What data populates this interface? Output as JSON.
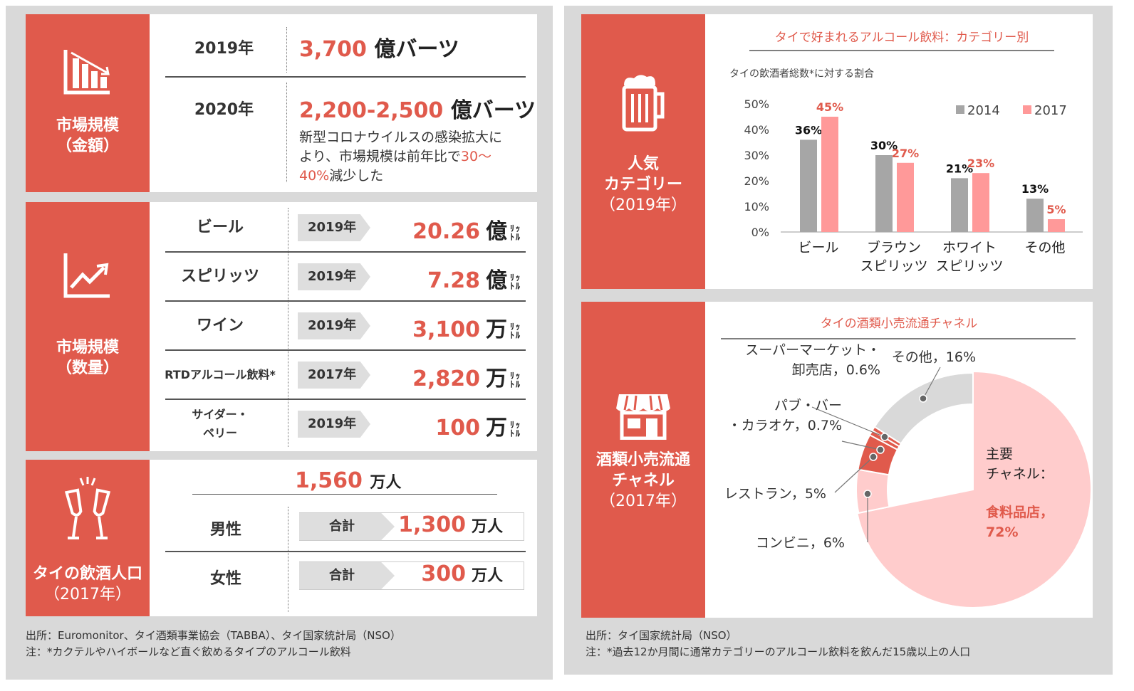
{
  "market_value": {
    "label": "市場規模",
    "sub": "（金額）",
    "rows": [
      {
        "year": "2019年",
        "num": "3,700",
        "unit": "億バーツ"
      },
      {
        "year": "2020年",
        "num": "2,200-2,500",
        "unit": "億バーツ"
      }
    ],
    "note_a": "新型コロナウイルスの感染拡大に",
    "note_b": "より、市場規模は前年比で",
    "note_c": "30～",
    "note_d": "40%",
    "note_e": "減少した"
  },
  "market_volume": {
    "label": "市場規模",
    "sub": "（数量）",
    "rows": [
      {
        "name": "ビール",
        "year": "2019年",
        "num": "20.26",
        "unit": "億"
      },
      {
        "name": "スピリッツ",
        "year": "2019年",
        "num": "7.28",
        "unit": "億"
      },
      {
        "name": "ワイン",
        "year": "2019年",
        "num": "3,100",
        "unit": "万"
      },
      {
        "name": "RTDアルコール飲料*",
        "year": "2017年",
        "num": "2,820",
        "unit": "万"
      },
      {
        "name": "サイダー・\nペリー",
        "year": "2019年",
        "num": "100",
        "unit": "万"
      }
    ],
    "liter_top": "ﾘｯ",
    "liter_bottom": "ﾄﾙ"
  },
  "drinking_pop": {
    "label": "タイの飲酒人口",
    "sub": "（2017年）",
    "total_num": "1,560",
    "total_unit": "万人",
    "rows": [
      {
        "name": "男性",
        "tag": "合計",
        "num": "1,300",
        "unit": "万人"
      },
      {
        "name": "女性",
        "tag": "合計",
        "num": "300",
        "unit": "万人"
      }
    ]
  },
  "footer_left": {
    "line1": "出所：Euromonitor、タイ酒類事業協会（TABBA）、タイ国家統計局（NSO）",
    "line2": "注：*カクテルやハイボールなど直ぐ飲めるタイプのアルコール飲料"
  },
  "popular": {
    "label_a": "人気",
    "label_b": "カテゴリー",
    "sub": "（2019年）"
  },
  "retail": {
    "label_a": "酒類小売流通",
    "label_b": "チャネル",
    "sub": "（2017年）"
  },
  "footer_right": {
    "line1": "出所：タイ国家統計局（NSO）",
    "line2": "注：*過去12か月間に通常カテゴリーのアルコール飲料を飲んだ15歳以上の人口"
  },
  "colors": {
    "accent": "#e05a4c",
    "gray_bar": "#a6a6a6",
    "pink_bar": "#ff9999",
    "pie_main": "#ffcccc",
    "pie_gray": "#d9d9d9"
  },
  "chart_data": [
    {
      "type": "bar",
      "title": "タイで好まれるアルコール飲料：カテゴリー別",
      "ylabel": "タイの飲酒者総数*に対する割合",
      "categories": [
        "ビール",
        "ブラウン\nスピリッツ",
        "ホワイト\nスピリッツ",
        "その他"
      ],
      "series": [
        {
          "name": "2014",
          "values": [
            36,
            30,
            21,
            13
          ],
          "labels": [
            "36%",
            "30%",
            "21%",
            "13%"
          ]
        },
        {
          "name": "2017",
          "values": [
            45,
            27,
            23,
            5
          ],
          "labels": [
            "45%",
            "27%",
            "23%",
            "5%"
          ]
        }
      ],
      "ylim": [
        0,
        50
      ],
      "yticks": [
        "0%",
        "10%",
        "20%",
        "30%",
        "40%",
        "50%"
      ],
      "legend": "top-right"
    },
    {
      "type": "pie",
      "title": "タイの酒類小売流通チャネル",
      "slices": [
        {
          "label": "主要\nチャネル：",
          "highlight": "食料品店，\n72%",
          "value": 72
        },
        {
          "label": "コンビニ，6%",
          "value": 6
        },
        {
          "label": "レストラン，5%",
          "value": 5
        },
        {
          "label": "パブ・バー\n・カラオケ，0.7%",
          "value": 0.7
        },
        {
          "label": "スーパーマーケット・\n卸売店，0.6%",
          "value": 0.6
        },
        {
          "label": "その他，16%",
          "value": 16
        }
      ]
    }
  ]
}
